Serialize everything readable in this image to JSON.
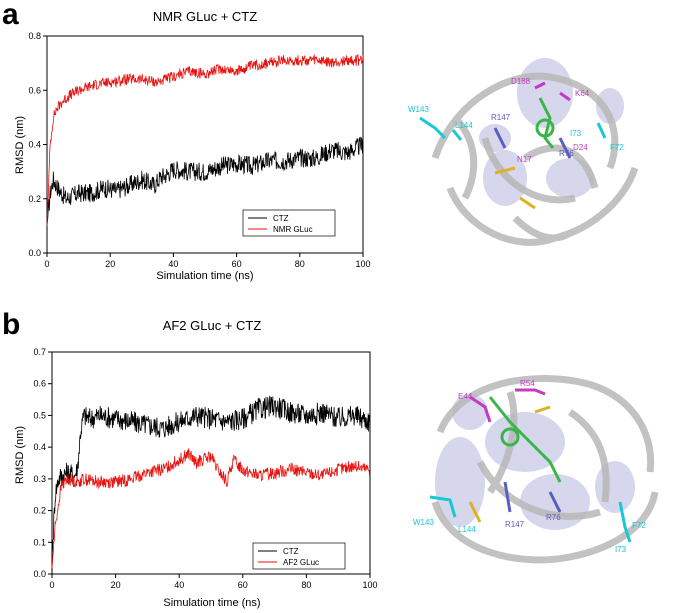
{
  "figure": {
    "panel_a": {
      "letter": "a",
      "title": "NMR GLuc + CTZ",
      "residue_labels": [
        "D188",
        "K64",
        "W143",
        "L144",
        "R147",
        "I73",
        "N17",
        "D24",
        "R76",
        "F72"
      ]
    },
    "panel_b": {
      "letter": "b",
      "title": "AF2 GLuc + CTZ",
      "residue_labels": [
        "E44",
        "R54",
        "W143",
        "L144",
        "R147",
        "R76",
        "F72",
        "I73"
      ]
    }
  },
  "colors": {
    "ctz": "#000000",
    "gluc": "#e8120f",
    "cyan": "#18c8d4",
    "magenta": "#c23bc2",
    "slate": "#5a5fbf",
    "green": "#39b54a",
    "gold": "#e0b020",
    "surface": "#c9c9e6"
  },
  "chart_data": [
    {
      "type": "line",
      "title": "NMR GLuc + CTZ",
      "xlabel": "Simulation time (ns)",
      "ylabel": "RMSD (nm)",
      "xlim": [
        0,
        100
      ],
      "ylim": [
        0,
        0.8
      ],
      "xticks": [
        0,
        20,
        40,
        60,
        80,
        100
      ],
      "yticks": [
        0.0,
        0.2,
        0.4,
        0.6,
        0.8
      ],
      "legend_position": "bottom-right",
      "series": [
        {
          "name": "CTZ",
          "color": "#000000",
          "x": [
            0,
            1,
            2,
            4,
            6,
            8,
            10,
            14,
            18,
            22,
            26,
            30,
            34,
            36,
            38,
            40,
            45,
            50,
            55,
            60,
            65,
            70,
            75,
            80,
            85,
            90,
            95,
            100
          ],
          "y": [
            0.1,
            0.22,
            0.27,
            0.23,
            0.2,
            0.21,
            0.22,
            0.22,
            0.24,
            0.23,
            0.25,
            0.27,
            0.25,
            0.28,
            0.29,
            0.31,
            0.3,
            0.3,
            0.32,
            0.33,
            0.32,
            0.34,
            0.34,
            0.35,
            0.35,
            0.38,
            0.37,
            0.4
          ]
        },
        {
          "name": "NMR GLuc",
          "color": "#e8120f",
          "x": [
            0,
            1,
            2,
            3,
            5,
            7,
            10,
            15,
            20,
            25,
            30,
            35,
            40,
            45,
            50,
            55,
            60,
            65,
            70,
            75,
            80,
            85,
            90,
            95,
            100
          ],
          "y": [
            0.1,
            0.4,
            0.5,
            0.53,
            0.56,
            0.58,
            0.6,
            0.62,
            0.63,
            0.64,
            0.64,
            0.63,
            0.65,
            0.67,
            0.66,
            0.68,
            0.67,
            0.69,
            0.7,
            0.71,
            0.71,
            0.71,
            0.7,
            0.71,
            0.71
          ]
        }
      ]
    },
    {
      "type": "line",
      "title": "AF2 GLuc + CTZ",
      "xlabel": "Simulation time (ns)",
      "ylabel": "RMSD (nm)",
      "xlim": [
        0,
        100
      ],
      "ylim": [
        0,
        0.7
      ],
      "xticks": [
        0,
        20,
        40,
        60,
        80,
        100
      ],
      "yticks": [
        0.0,
        0.1,
        0.2,
        0.3,
        0.4,
        0.5,
        0.6,
        0.7
      ],
      "legend_position": "bottom-right",
      "series": [
        {
          "name": "CTZ",
          "color": "#000000",
          "x": [
            0,
            1,
            2,
            3,
            5,
            7,
            8,
            9,
            10,
            12,
            15,
            20,
            25,
            30,
            35,
            40,
            45,
            50,
            55,
            60,
            65,
            70,
            75,
            80,
            85,
            90,
            95,
            100
          ],
          "y": [
            0.05,
            0.25,
            0.3,
            0.31,
            0.32,
            0.31,
            0.33,
            0.45,
            0.5,
            0.49,
            0.5,
            0.49,
            0.48,
            0.47,
            0.46,
            0.48,
            0.5,
            0.49,
            0.48,
            0.49,
            0.52,
            0.53,
            0.51,
            0.5,
            0.51,
            0.49,
            0.5,
            0.48
          ]
        },
        {
          "name": "AF2 GLuc",
          "color": "#e8120f",
          "x": [
            0,
            1,
            2,
            3,
            5,
            8,
            10,
            15,
            20,
            25,
            30,
            35,
            40,
            43,
            45,
            50,
            52,
            55,
            57,
            60,
            65,
            70,
            75,
            80,
            85,
            90,
            95,
            100
          ],
          "y": [
            0.02,
            0.15,
            0.22,
            0.28,
            0.3,
            0.29,
            0.3,
            0.29,
            0.29,
            0.3,
            0.32,
            0.33,
            0.36,
            0.38,
            0.35,
            0.37,
            0.33,
            0.29,
            0.36,
            0.33,
            0.31,
            0.32,
            0.33,
            0.32,
            0.31,
            0.33,
            0.34,
            0.33
          ]
        }
      ]
    }
  ]
}
